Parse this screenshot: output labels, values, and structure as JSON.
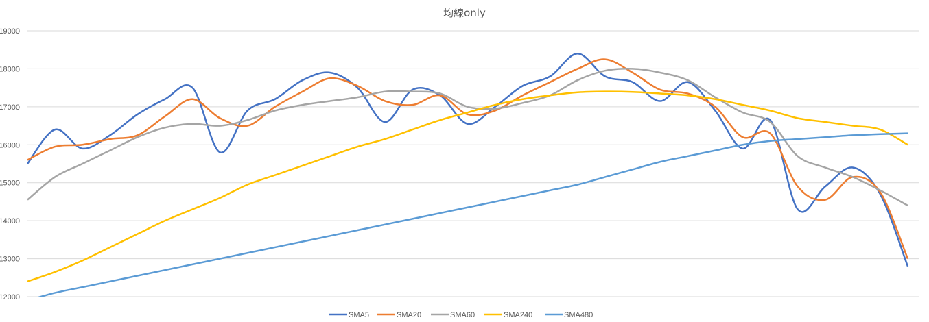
{
  "chart_data": {
    "type": "line",
    "title": "均線only",
    "xlabel": "",
    "ylabel": "",
    "ylim": [
      12000,
      19000
    ],
    "yticks": [
      12000,
      13000,
      14000,
      15000,
      16000,
      17000,
      18000,
      19000
    ],
    "grid": true,
    "legend_position": "bottom",
    "x": [
      0,
      20,
      40,
      60,
      80,
      100,
      120,
      140,
      160,
      180,
      200,
      220,
      240,
      260,
      280,
      300,
      320,
      340,
      360,
      380,
      400,
      420,
      440,
      460,
      480,
      500,
      520,
      540,
      560,
      580,
      600,
      620,
      640
    ],
    "series": [
      {
        "name": "SMA5",
        "color": "#4472C4",
        "values": [
          15500,
          16400,
          15900,
          16250,
          16800,
          17200,
          17500,
          15800,
          16900,
          17200,
          17700,
          17900,
          17500,
          16600,
          17450,
          17300,
          16550,
          17000,
          17550,
          17800,
          18400,
          17800,
          17650,
          17150,
          17650,
          16900,
          15900,
          16650,
          14300,
          14900,
          15400,
          14700,
          12800
        ]
      },
      {
        "name": "SMA20",
        "color": "#ED7D31",
        "values": [
          15600,
          15950,
          16000,
          16150,
          16250,
          16750,
          17200,
          16700,
          16500,
          17000,
          17400,
          17750,
          17550,
          17150,
          17050,
          17300,
          16800,
          16900,
          17300,
          17650,
          18000,
          18250,
          17900,
          17450,
          17350,
          17000,
          16200,
          16300,
          14900,
          14550,
          15150,
          14750,
          13000
        ]
      },
      {
        "name": "SMA60",
        "color": "#A5A5A5",
        "values": [
          14550,
          15150,
          15500,
          15850,
          16200,
          16450,
          16550,
          16500,
          16650,
          16900,
          17050,
          17150,
          17250,
          17400,
          17400,
          17350,
          17000,
          16950,
          17100,
          17300,
          17700,
          17950,
          18000,
          17900,
          17700,
          17250,
          16850,
          16600,
          15700,
          15400,
          15150,
          14800,
          14400
        ]
      },
      {
        "name": "SMA240",
        "color": "#FFC000",
        "values": [
          12400,
          12650,
          12950,
          13300,
          13650,
          14000,
          14300,
          14600,
          14950,
          15200,
          15450,
          15700,
          15950,
          16150,
          16400,
          16650,
          16850,
          17050,
          17200,
          17300,
          17380,
          17400,
          17390,
          17350,
          17300,
          17200,
          17050,
          16900,
          16700,
          16600,
          16500,
          16400,
          16000
        ]
      },
      {
        "name": "SMA480",
        "color": "#5B9BD5",
        "values": [
          11900,
          12100,
          12250,
          12400,
          12550,
          12700,
          12850,
          13000,
          13150,
          13300,
          13450,
          13600,
          13750,
          13900,
          14050,
          14200,
          14350,
          14500,
          14650,
          14800,
          14950,
          15150,
          15350,
          15550,
          15700,
          15850,
          16000,
          16100,
          16150,
          16200,
          16250,
          16280,
          16300
        ]
      }
    ]
  }
}
